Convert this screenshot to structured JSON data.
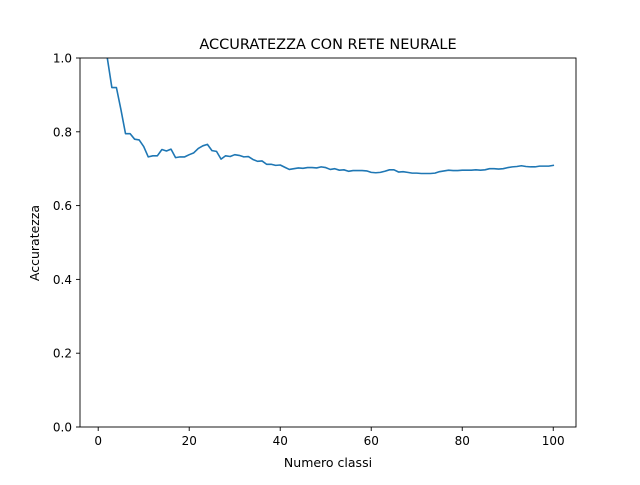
{
  "chart_data": {
    "type": "line",
    "title": "ACCURATEZZA CON RETE NEURALE",
    "xlabel": "Numero classi",
    "ylabel": "Accuratezza",
    "xlim": [
      -4,
      105
    ],
    "ylim": [
      0.0,
      1.0
    ],
    "xticks": [
      0,
      20,
      40,
      60,
      80,
      100
    ],
    "yticks": [
      0.0,
      0.2,
      0.4,
      0.6,
      0.8,
      1.0
    ],
    "xtick_labels": [
      "0",
      "20",
      "40",
      "60",
      "80",
      "100"
    ],
    "ytick_labels": [
      "0.0",
      "0.2",
      "0.4",
      "0.6",
      "0.8",
      "1.0"
    ],
    "grid": false,
    "series": [
      {
        "color": "#1f77b4",
        "x": [
          2,
          3,
          4,
          5,
          6,
          7,
          8,
          9,
          10,
          11,
          12,
          13,
          14,
          15,
          16,
          17,
          18,
          19,
          20,
          21,
          22,
          23,
          24,
          25,
          26,
          27,
          28,
          29,
          30,
          31,
          32,
          33,
          34,
          35,
          36,
          37,
          38,
          39,
          40,
          41,
          42,
          43,
          44,
          45,
          46,
          47,
          48,
          49,
          50,
          51,
          52,
          53,
          54,
          55,
          56,
          57,
          58,
          59,
          60,
          61,
          62,
          63,
          64,
          65,
          66,
          67,
          68,
          69,
          70,
          71,
          72,
          73,
          74,
          75,
          76,
          77,
          78,
          79,
          80,
          81,
          82,
          83,
          84,
          85,
          86,
          87,
          88,
          89,
          90,
          91,
          92,
          93,
          94,
          95,
          96,
          97,
          98,
          99,
          100
        ],
        "y": [
          1.0,
          0.92,
          0.92,
          0.86,
          0.795,
          0.795,
          0.78,
          0.778,
          0.76,
          0.732,
          0.735,
          0.735,
          0.752,
          0.748,
          0.753,
          0.73,
          0.732,
          0.732,
          0.738,
          0.743,
          0.755,
          0.762,
          0.766,
          0.749,
          0.747,
          0.726,
          0.735,
          0.733,
          0.738,
          0.736,
          0.732,
          0.733,
          0.725,
          0.72,
          0.721,
          0.712,
          0.712,
          0.709,
          0.71,
          0.704,
          0.698,
          0.7,
          0.702,
          0.701,
          0.703,
          0.703,
          0.702,
          0.705,
          0.703,
          0.698,
          0.7,
          0.696,
          0.697,
          0.693,
          0.695,
          0.695,
          0.695,
          0.694,
          0.69,
          0.689,
          0.69,
          0.693,
          0.697,
          0.697,
          0.691,
          0.692,
          0.69,
          0.688,
          0.688,
          0.687,
          0.687,
          0.687,
          0.688,
          0.692,
          0.694,
          0.696,
          0.695,
          0.695,
          0.696,
          0.696,
          0.696,
          0.697,
          0.696,
          0.697,
          0.7,
          0.7,
          0.699,
          0.7,
          0.703,
          0.705,
          0.706,
          0.708,
          0.706,
          0.705,
          0.705,
          0.707,
          0.707,
          0.707,
          0.709
        ]
      }
    ]
  }
}
